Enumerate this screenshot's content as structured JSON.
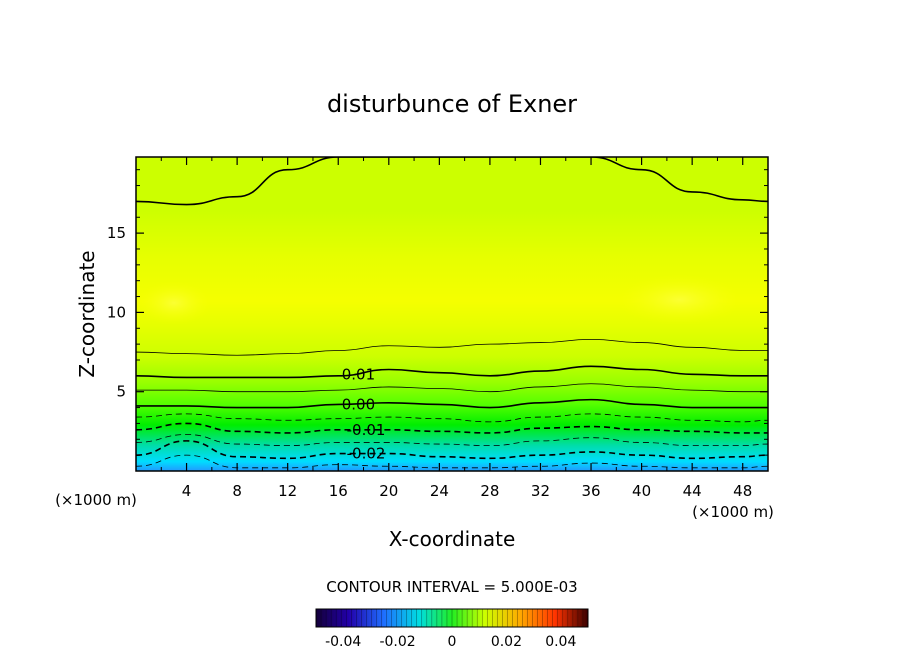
{
  "chart_data": {
    "type": "heatmap",
    "title": "disturbunce of Exner",
    "xlabel": "X-coordinate",
    "ylabel": "Z-coordinate",
    "x_unit": "(×1000 m)",
    "xlim": [
      0,
      50
    ],
    "ylim": [
      0,
      19.8
    ],
    "x_ticks": [
      "4",
      "8",
      "12",
      "16",
      "20",
      "24",
      "28",
      "32",
      "36",
      "40",
      "44",
      "48"
    ],
    "y_ticks": [
      "5",
      "10",
      "15"
    ],
    "contour_interval_label": "CONTOUR INTERVAL = 5.000E-03",
    "contour_labels": [
      "0.01",
      "0.00",
      "-0.01",
      "-0.02"
    ],
    "contour_levels": [
      0.02,
      0.015,
      0.01,
      0.005,
      0.0,
      -0.005,
      -0.01,
      -0.015,
      -0.02,
      -0.025
    ],
    "contours": [
      {
        "level": 0.02,
        "x": [
          0,
          4,
          8,
          12,
          16,
          20,
          24,
          28,
          32,
          36,
          40,
          44,
          48,
          50
        ],
        "z": [
          17.0,
          16.8,
          17.3,
          19.0,
          19.8,
          19.8,
          19.8,
          19.8,
          19.8,
          19.8,
          19.0,
          17.6,
          17.1,
          17.0
        ]
      },
      {
        "level": 0.015,
        "x": [
          0,
          4,
          8,
          12,
          16,
          20,
          24,
          28,
          32,
          36,
          40,
          44,
          48,
          50
        ],
        "z": [
          7.5,
          7.4,
          7.3,
          7.4,
          7.6,
          7.9,
          7.8,
          8.0,
          8.1,
          8.3,
          8.1,
          7.8,
          7.6,
          7.6
        ]
      },
      {
        "level": 0.01,
        "x": [
          0,
          4,
          8,
          12,
          16,
          20,
          24,
          28,
          32,
          36,
          40,
          44,
          48,
          50
        ],
        "z": [
          6.0,
          5.9,
          5.9,
          5.9,
          6.0,
          6.4,
          6.2,
          6.0,
          6.3,
          6.6,
          6.4,
          6.1,
          6.0,
          6.0
        ]
      },
      {
        "level": 0.005,
        "x": [
          0,
          4,
          8,
          12,
          16,
          20,
          24,
          28,
          32,
          36,
          40,
          44,
          48,
          50
        ],
        "z": [
          5.1,
          5.1,
          5.0,
          5.0,
          5.1,
          5.3,
          5.2,
          5.0,
          5.3,
          5.5,
          5.3,
          5.1,
          5.0,
          5.0
        ]
      },
      {
        "level": 0.0,
        "x": [
          0,
          4,
          8,
          12,
          16,
          20,
          24,
          28,
          32,
          36,
          40,
          44,
          48,
          50
        ],
        "z": [
          4.1,
          4.1,
          4.0,
          4.0,
          4.2,
          4.3,
          4.2,
          4.0,
          4.3,
          4.5,
          4.2,
          4.0,
          4.0,
          4.0
        ]
      },
      {
        "level": -0.005,
        "x": [
          0,
          4,
          8,
          12,
          16,
          20,
          24,
          28,
          32,
          36,
          40,
          44,
          48,
          50
        ],
        "z": [
          3.4,
          3.6,
          3.3,
          3.2,
          3.3,
          3.4,
          3.3,
          3.1,
          3.4,
          3.6,
          3.4,
          3.2,
          3.1,
          3.2
        ]
      },
      {
        "level": -0.01,
        "x": [
          0,
          4,
          8,
          12,
          16,
          20,
          24,
          28,
          32,
          36,
          40,
          44,
          48,
          50
        ],
        "z": [
          2.6,
          3.0,
          2.5,
          2.4,
          2.6,
          2.6,
          2.5,
          2.4,
          2.7,
          2.8,
          2.6,
          2.5,
          2.4,
          2.4
        ]
      },
      {
        "level": -0.015,
        "x": [
          0,
          4,
          8,
          12,
          16,
          20,
          24,
          28,
          32,
          36,
          40,
          44,
          48,
          50
        ],
        "z": [
          1.8,
          2.3,
          1.7,
          1.6,
          1.8,
          1.8,
          1.7,
          1.6,
          1.9,
          2.1,
          1.8,
          1.6,
          1.6,
          1.7
        ]
      },
      {
        "level": -0.02,
        "x": [
          0,
          4,
          8,
          12,
          16,
          20,
          24,
          28,
          32,
          36,
          40,
          44,
          48,
          50
        ],
        "z": [
          1.0,
          1.9,
          0.9,
          0.8,
          1.1,
          1.1,
          0.9,
          0.8,
          1.0,
          1.2,
          1.0,
          0.8,
          0.9,
          1.0
        ]
      },
      {
        "level": -0.025,
        "x": [
          0,
          4,
          8,
          12,
          16,
          20,
          24,
          28,
          32,
          36,
          40,
          44,
          48,
          50
        ],
        "z": [
          0.3,
          1.0,
          0.2,
          0.2,
          0.4,
          0.3,
          0.2,
          0.2,
          0.3,
          0.5,
          0.3,
          0.2,
          0.2,
          0.3
        ]
      }
    ],
    "contour_label_points": [
      {
        "text": "0.01",
        "x": 17.6,
        "z": 6.1
      },
      {
        "text": "0.00",
        "x": 17.6,
        "z": 4.2
      },
      {
        "text": "-0.01",
        "x": 18.2,
        "z": 2.6
      },
      {
        "text": "-0.02",
        "x": 18.2,
        "z": 1.1
      }
    ],
    "highlights": [
      {
        "x": 3,
        "z": 10.6,
        "rx": 3,
        "rz": 1.4
      },
      {
        "x": 43,
        "z": 10.8,
        "rx": 5,
        "rz": 1.6
      }
    ],
    "colorbar": {
      "min": -0.05,
      "max": 0.05,
      "tick_labels": [
        "-0.04",
        "-0.02",
        "0",
        "0.02",
        "0.04"
      ],
      "tick_values": [
        -0.04,
        -0.02,
        0,
        0.02,
        0.04
      ]
    },
    "colors": {
      "frame": "#000000",
      "top_band": "#ccff00",
      "upper_band": "#e6ff00",
      "core": "#f5ff00",
      "green_light": "#99ff00",
      "green_mid": "#55ff00",
      "green_deep": "#00ee00",
      "teal": "#00ddaa",
      "cyan": "#00ddff",
      "blue": "#2299ff"
    }
  }
}
